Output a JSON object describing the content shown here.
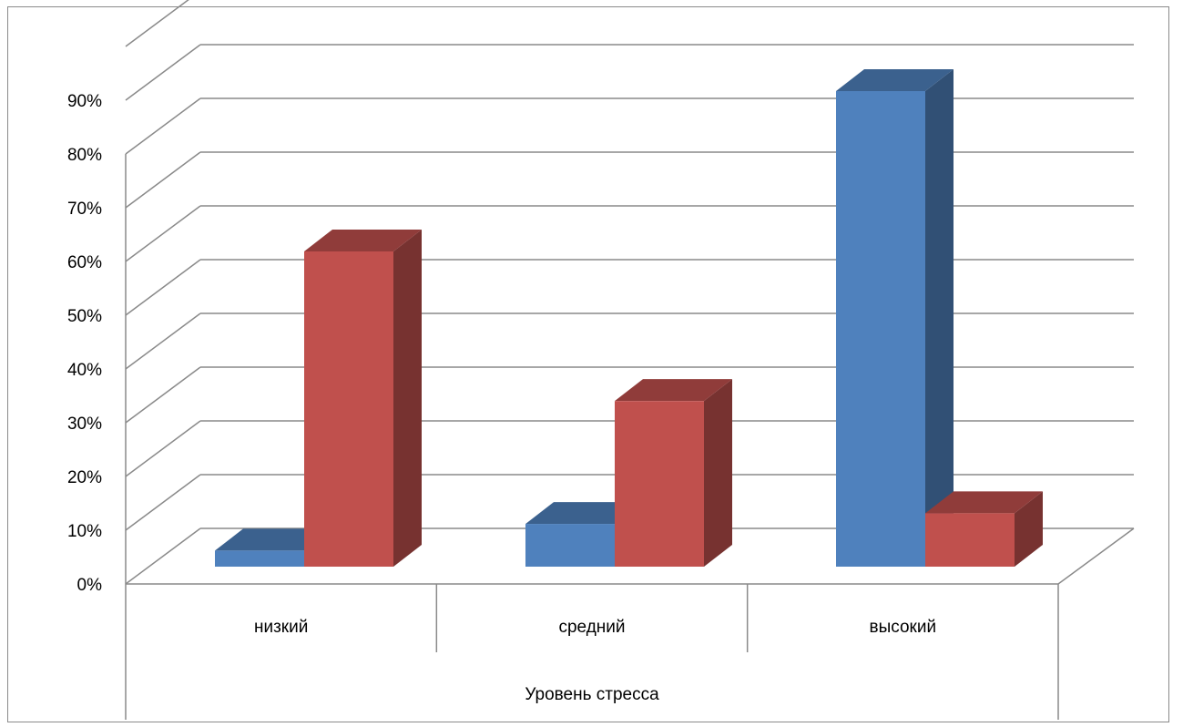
{
  "chart_data": {
    "type": "bar",
    "title": "",
    "xlabel": "Уровень стресса",
    "ylabel": "",
    "categories": [
      "низкий",
      "средний",
      "высокий"
    ],
    "yticks": [
      "0%",
      "10%",
      "20%",
      "30%",
      "40%",
      "50%",
      "60%",
      "70%",
      "80%",
      "90%"
    ],
    "ylim": [
      0,
      100
    ],
    "grid": true,
    "legend": "none",
    "series": [
      {
        "color": "#4F81BD",
        "values": [
          3,
          8,
          89
        ]
      },
      {
        "color": "#C0504D",
        "values": [
          59,
          31,
          10
        ]
      }
    ]
  }
}
